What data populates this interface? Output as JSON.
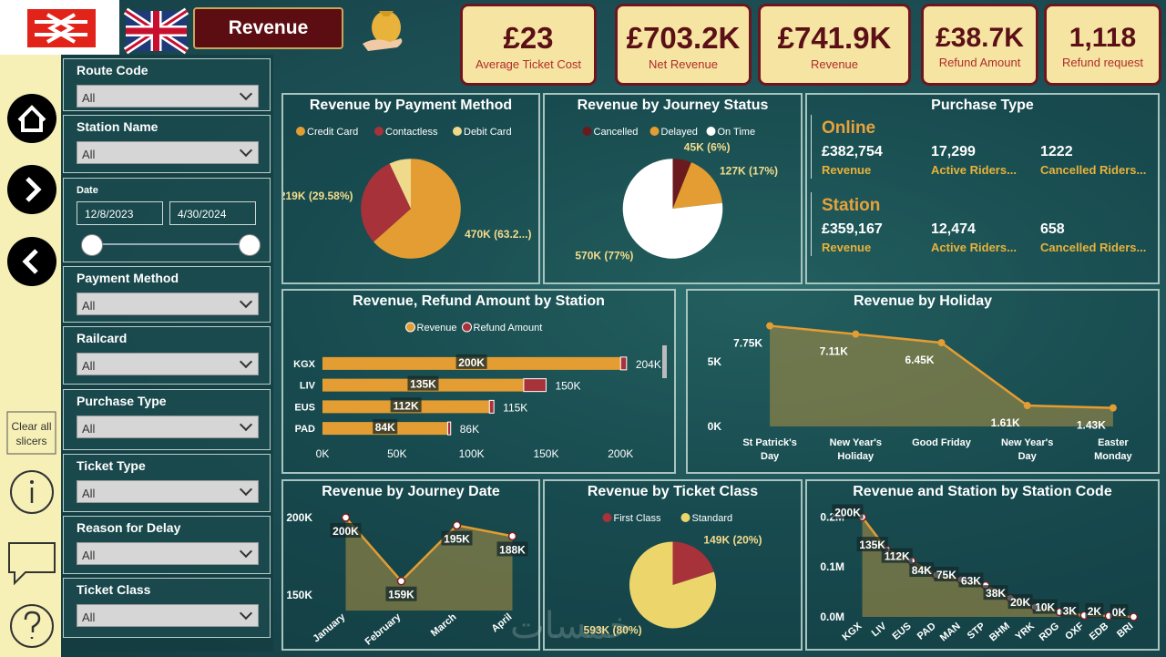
{
  "header": {
    "title": "Revenue"
  },
  "kpis": [
    {
      "value": "£23",
      "label": "Average Ticket Cost"
    },
    {
      "value": "£703.2K",
      "label": "Net Revenue"
    },
    {
      "value": "£741.9K",
      "label": "Revenue"
    },
    {
      "value": "£38.7K",
      "label": "Refund Amount"
    },
    {
      "value": "1,118",
      "label": "Refund request"
    }
  ],
  "clear_slicers": "Clear all slicers",
  "slicers": [
    {
      "title": "Route Code",
      "value": "All"
    },
    {
      "title": "Station Name",
      "value": "All"
    },
    {
      "title": "Date",
      "from": "12/8/2023",
      "to": "4/30/2024"
    },
    {
      "title": "Payment Method",
      "value": "All"
    },
    {
      "title": "Railcard",
      "value": "All"
    },
    {
      "title": "Purchase Type",
      "value": "All"
    },
    {
      "title": "Ticket Type",
      "value": "All"
    },
    {
      "title": "Reason for Delay",
      "value": "All"
    },
    {
      "title": "Ticket Class",
      "value": "All"
    }
  ],
  "purchase_type": {
    "title": "Purchase Type",
    "sections": [
      {
        "name": "Online",
        "metrics": [
          {
            "value": "£382,754",
            "label": "Revenue"
          },
          {
            "value": "17,299",
            "label": "Active Riders..."
          },
          {
            "value": "1222",
            "label": "Cancelled Riders..."
          }
        ]
      },
      {
        "name": "Station",
        "metrics": [
          {
            "value": "£359,167",
            "label": "Revenue"
          },
          {
            "value": "12,474",
            "label": "Active Riders..."
          },
          {
            "value": "658",
            "label": "Cancelled Riders..."
          }
        ]
      }
    ]
  },
  "watermark": "خمسات",
  "chart_data": [
    {
      "type": "pie",
      "title": "Revenue by Payment Method",
      "categories": [
        "Credit Card",
        "Contactless",
        "Debit Card"
      ],
      "colors": [
        "#e39d32",
        "#a8323a",
        "#efd98a"
      ],
      "values": [
        470000,
        219000,
        52000
      ],
      "value_labels": [
        "470K (63.2...)",
        "219K (29.58%)",
        null
      ]
    },
    {
      "type": "pie",
      "title": "Revenue by Journey Status",
      "categories": [
        "Cancelled",
        "Delayed",
        "On Time"
      ],
      "colors": [
        "#6b1a1e",
        "#e39d32",
        "#ffffff"
      ],
      "values": [
        45000,
        127000,
        570000
      ],
      "value_labels": [
        "45K (6%)",
        "127K (17%)",
        "570K (77%)"
      ]
    },
    {
      "type": "bar",
      "title": "Revenue, Refund Amount by Station",
      "categories": [
        "KGX",
        "LIV",
        "EUS",
        "PAD"
      ],
      "series": [
        {
          "name": "Revenue",
          "color": "#e39d32",
          "values": [
            200000,
            135000,
            112000,
            84000
          ],
          "value_labels": [
            "200K",
            "135K",
            "112K",
            "84K"
          ]
        },
        {
          "name": "Refund Amount",
          "color": "#a8323a",
          "values": [
            4000,
            15000,
            3000,
            2000
          ]
        }
      ],
      "total_labels": [
        "204K",
        "150K",
        "115K",
        "86K"
      ],
      "xlim": [
        0,
        220000
      ],
      "xticks": [
        {
          "value": 0,
          "label": "0K"
        },
        {
          "value": 50000,
          "label": "50K"
        },
        {
          "value": 100000,
          "label": "100K"
        },
        {
          "value": 150000,
          "label": "150K"
        },
        {
          "value": 200000,
          "label": "200K"
        }
      ]
    },
    {
      "type": "area",
      "title": "Revenue by Holiday",
      "color": "#e39d32",
      "categories": [
        "St Patrick's Day",
        "New Year's Holiday",
        "Good Friday",
        "New Year's Day",
        "Easter Monday"
      ],
      "values": [
        7750,
        7110,
        6450,
        1610,
        1430
      ],
      "value_labels": [
        "7.75K",
        "7.11K",
        "6.45K",
        "1.61K",
        "1.43K"
      ],
      "ylim": [
        0,
        8000
      ],
      "yticks": [
        {
          "value": 0,
          "label": "0K"
        },
        {
          "value": 5000,
          "label": "5K"
        }
      ]
    },
    {
      "type": "area",
      "title": "Revenue by Journey Date",
      "color": "#e39d32",
      "categories": [
        "January",
        "February",
        "March",
        "April"
      ],
      "values": [
        200000,
        159000,
        195000,
        188000
      ],
      "value_labels": [
        "200K",
        "159K",
        "195K",
        "188K"
      ],
      "ylim": [
        140000,
        210000
      ],
      "yticks": [
        {
          "value": 150000,
          "label": "150K"
        },
        {
          "value": 200000,
          "label": "200K"
        }
      ]
    },
    {
      "type": "pie",
      "title": "Revenue by Ticket Class",
      "categories": [
        "First Class",
        "Standard"
      ],
      "colors": [
        "#a8323a",
        "#ecd66b"
      ],
      "values": [
        149000,
        593000
      ],
      "value_labels": [
        "149K (20%)",
        "593K (80%)"
      ]
    },
    {
      "type": "area",
      "title": "Revenue and Station by Station Code",
      "color": "#e39d32",
      "categories": [
        "KGX",
        "LIV",
        "EUS",
        "PAD",
        "MAN",
        "STP",
        "BHM",
        "YRK",
        "RDG",
        "OXF",
        "EDB",
        "BRI"
      ],
      "values": [
        200000,
        135000,
        112000,
        84000,
        75000,
        63000,
        38000,
        20000,
        10000,
        3000,
        2000,
        0
      ],
      "value_labels": [
        "200K",
        "135K",
        "112K",
        "84K",
        "75K",
        "63K",
        "38K",
        "20K",
        "10K",
        "3K",
        "2K",
        "0K"
      ],
      "ylim": [
        0,
        210000
      ],
      "yticks": [
        {
          "value": 0,
          "label": "0.0M"
        },
        {
          "value": 100000,
          "label": "0.1M"
        },
        {
          "value": 200000,
          "label": "0.2M"
        }
      ]
    }
  ]
}
